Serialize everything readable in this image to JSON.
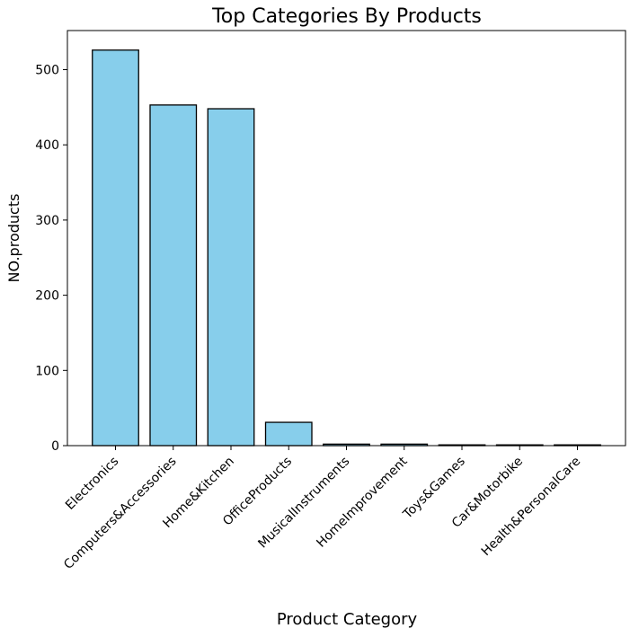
{
  "chart_data": {
    "type": "bar",
    "title": "Top Categories By Products",
    "xlabel": "Product Category",
    "ylabel": "NO.products",
    "categories": [
      "Electronics",
      "Computers&Accessories",
      "Home&Kitchen",
      "OfficeProducts",
      "MusicalInstruments",
      "HomeImprovement",
      "Toys&Games",
      "Car&Motorbike",
      "Health&PersonalCare"
    ],
    "values": [
      526,
      453,
      448,
      31,
      2,
      2,
      1,
      1,
      1
    ],
    "ylim": [
      0,
      552
    ],
    "yticks": [
      0,
      100,
      200,
      300,
      400,
      500
    ],
    "colors": {
      "bar_fill": "#87CEEB",
      "bar_edge": "#000000"
    },
    "grid": false,
    "legend": "none"
  }
}
